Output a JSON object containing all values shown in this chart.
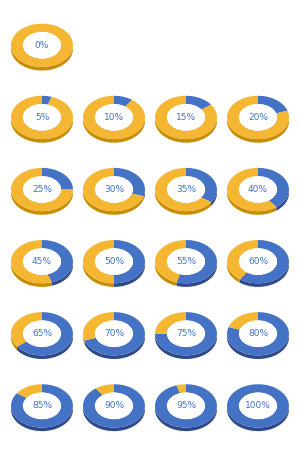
{
  "percentages": [
    0,
    5,
    10,
    15,
    20,
    25,
    30,
    35,
    40,
    45,
    50,
    55,
    60,
    65,
    70,
    75,
    80,
    85,
    90,
    95,
    100
  ],
  "blue_color": "#4472C4",
  "blue_dark": "#2E4A8A",
  "yellow_color": "#F5B731",
  "yellow_dark": "#C98B00",
  "text_color": "#4472C4",
  "bg_color": "#FFFFFF",
  "n_cols": 4,
  "n_rows": 6,
  "label_fontsize": 6.5
}
